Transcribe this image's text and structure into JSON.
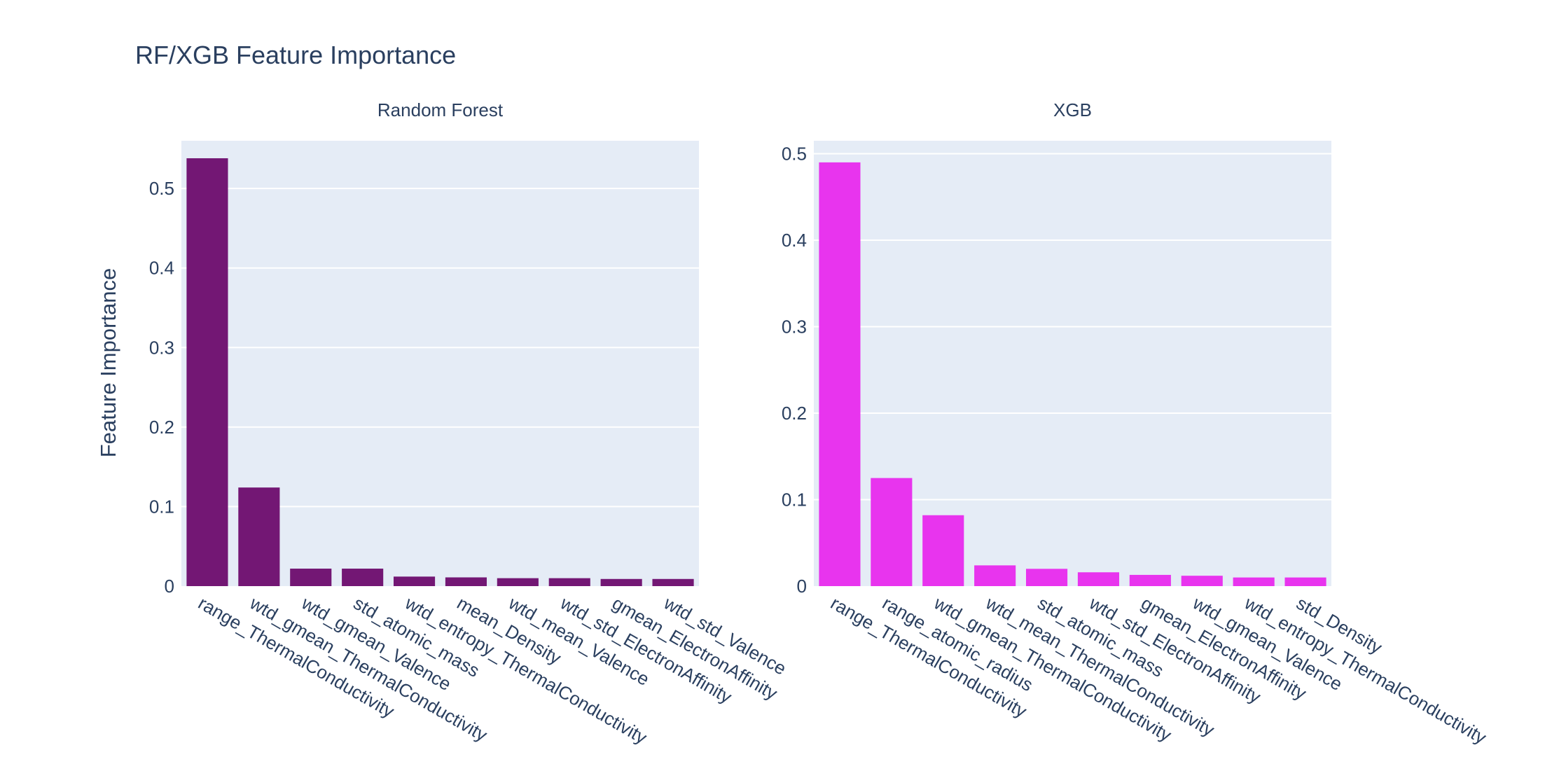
{
  "chart_data": {
    "type": "bar",
    "title": "RF/XGB Feature Importance",
    "ylabel": "Feature Importance",
    "grid": true,
    "panels": [
      {
        "subtitle": "Random Forest",
        "color": "#731774",
        "ylim": [
          0,
          0.56
        ],
        "yticks": [
          0,
          0.1,
          0.2,
          0.3,
          0.4,
          0.5
        ],
        "ytick_labels": [
          "0",
          "0.1",
          "0.2",
          "0.3",
          "0.4",
          "0.5"
        ],
        "categories": [
          "range_ThermalConductivity",
          "wtd_gmean_ThermalConductivity",
          "wtd_gmean_Valence",
          "std_atomic_mass",
          "wtd_entropy_ThermalConductivity",
          "mean_Density",
          "wtd_mean_Valence",
          "wtd_std_ElectronAffinity",
          "gmean_ElectronAffinity",
          "wtd_std_Valence"
        ],
        "values": [
          0.538,
          0.124,
          0.022,
          0.022,
          0.012,
          0.011,
          0.01,
          0.01,
          0.009,
          0.009
        ]
      },
      {
        "subtitle": "XGB",
        "color": "#e834ee",
        "ylim": [
          0,
          0.515
        ],
        "yticks": [
          0,
          0.1,
          0.2,
          0.3,
          0.4,
          0.5
        ],
        "ytick_labels": [
          "0",
          "0.1",
          "0.2",
          "0.3",
          "0.4",
          "0.5"
        ],
        "categories": [
          "range_ThermalConductivity",
          "range_atomic_radius",
          "wtd_gmean_ThermalConductivity",
          "wtd_mean_ThermalConductivity",
          "std_atomic_mass",
          "wtd_std_ElectronAffinity",
          "gmean_ElectronAffinity",
          "wtd_gmean_Valence",
          "wtd_entropy_ThermalConductivity",
          "std_Density"
        ],
        "values": [
          0.49,
          0.125,
          0.082,
          0.024,
          0.02,
          0.016,
          0.013,
          0.012,
          0.01,
          0.01
        ]
      }
    ]
  }
}
